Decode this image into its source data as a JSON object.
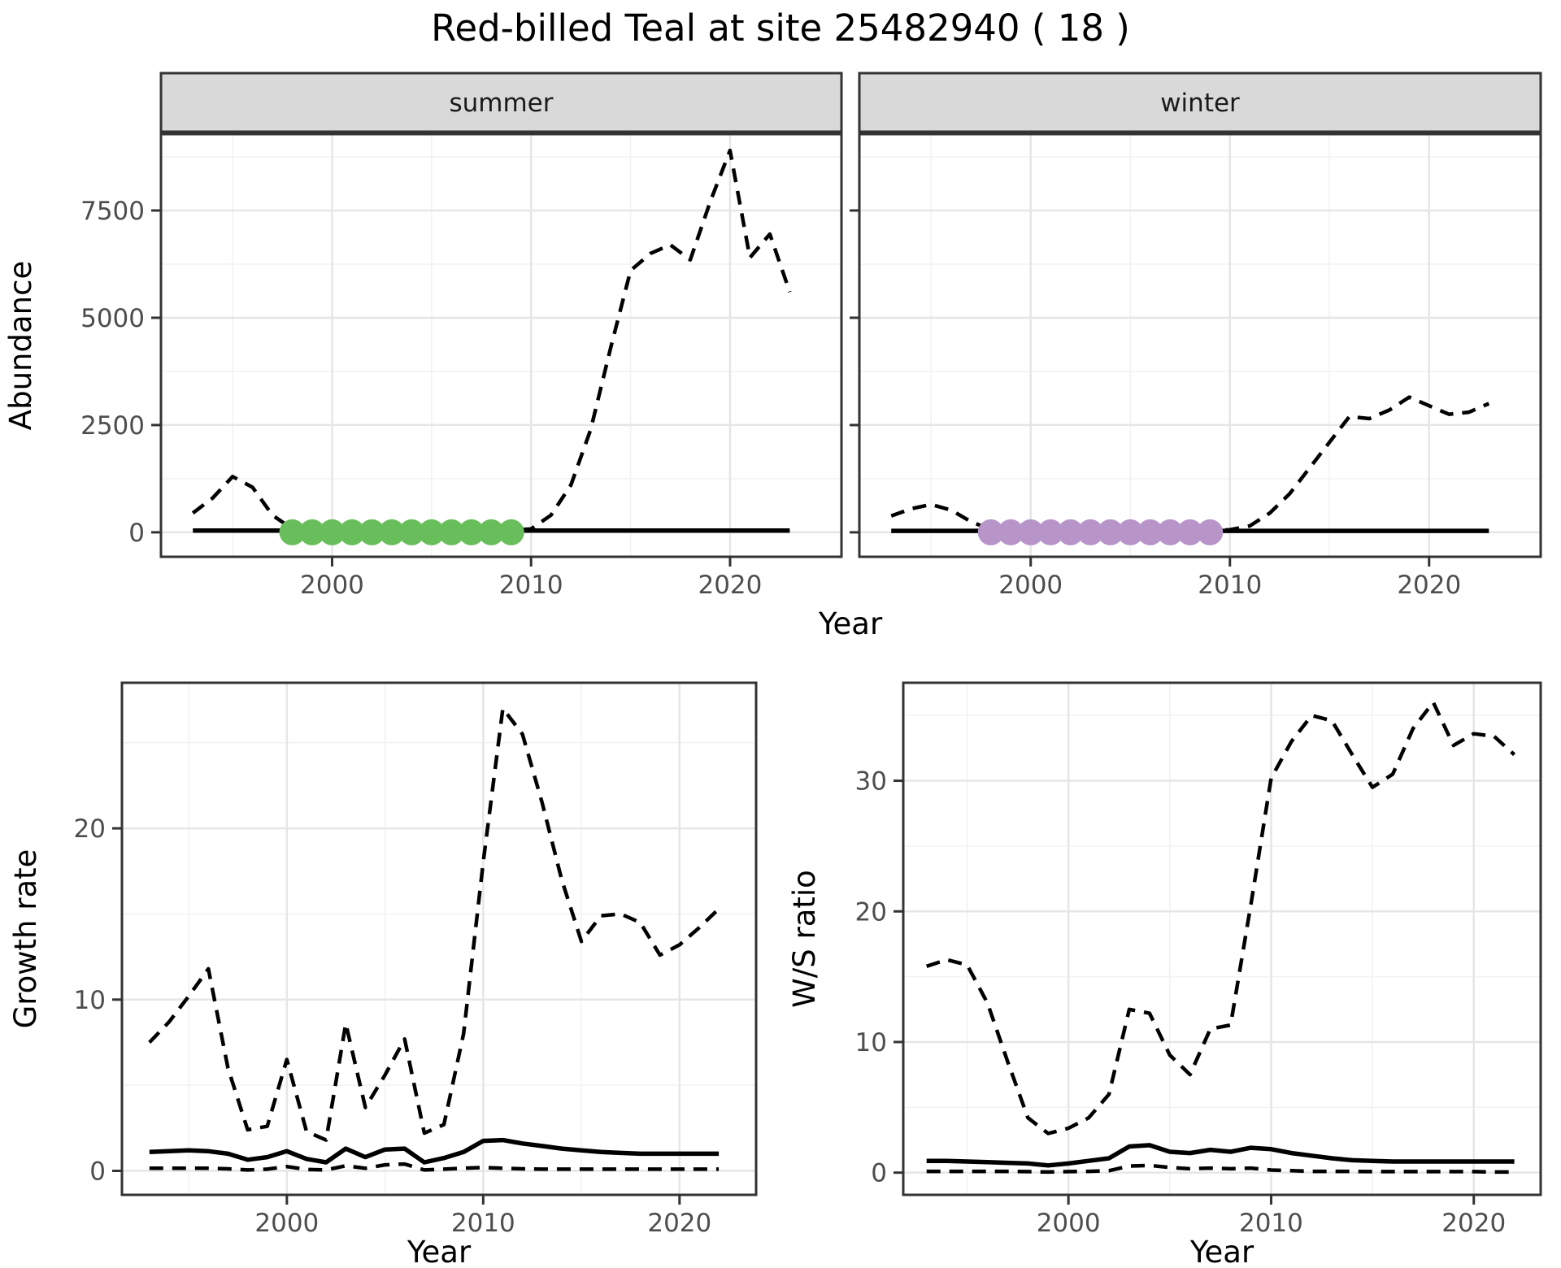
{
  "title": "Red-billed Teal at site 25482940 ( 18 )",
  "colors": {
    "imputed_summer": "#69BE5C",
    "imputed_winter": "#B795C9",
    "line": "#000000",
    "strip_bg": "#D9D9D9",
    "panel_border": "#333333",
    "tick_text": "#4D4D4D",
    "title_text": "#000000",
    "grid_major": "#E6E6E6",
    "grid_minor": "#F2F2F2"
  },
  "chart_data": [
    {
      "id": "summer",
      "type": "line",
      "facet_label": "summer",
      "xlabel": "Year",
      "ylabel": "Abundance",
      "xlim": [
        1991.4,
        2025.6
      ],
      "ylim": [
        -570,
        9280
      ],
      "xticks": [
        2000,
        2010,
        2020
      ],
      "yticks": [
        0,
        2500,
        5000,
        7500
      ],
      "xticks_minor": [
        1995,
        2005,
        2015
      ],
      "yticks_minor": [
        1250,
        3750,
        6250,
        8750
      ],
      "grid": true,
      "legend": "none",
      "x": [
        1993,
        1994,
        1995,
        1996,
        1997,
        1998,
        1999,
        2000,
        2001,
        2002,
        2003,
        2004,
        2005,
        2006,
        2007,
        2008,
        2009,
        2010,
        2011,
        2012,
        2013,
        2014,
        2015,
        2016,
        2017,
        2018,
        2019,
        2020,
        2021,
        2022,
        2023
      ],
      "series": [
        {
          "name": "observed-count",
          "linestyle": "dashed",
          "values": [
            450,
            800,
            1300,
            1050,
            400,
            80,
            40,
            30,
            30,
            30,
            40,
            30,
            30,
            40,
            30,
            40,
            50,
            80,
            400,
            1100,
            2400,
            4300,
            6100,
            6500,
            6700,
            6350,
            7700,
            8900,
            6400,
            6950,
            5600
          ]
        },
        {
          "name": "modelled-index",
          "linestyle": "solid",
          "values": [
            40,
            40,
            40,
            40,
            40,
            40,
            40,
            40,
            40,
            40,
            40,
            40,
            40,
            40,
            40,
            40,
            40,
            40,
            40,
            40,
            40,
            40,
            40,
            40,
            40,
            40,
            40,
            40,
            40,
            40,
            40
          ]
        }
      ],
      "imputed_points": {
        "color": "#69BE5C",
        "x": [
          1998,
          1999,
          2000,
          2001,
          2002,
          2003,
          2004,
          2005,
          2006,
          2007,
          2008,
          2009
        ],
        "y": [
          0,
          0,
          0,
          0,
          0,
          0,
          0,
          0,
          0,
          0,
          0,
          0
        ]
      }
    },
    {
      "id": "winter",
      "type": "line",
      "facet_label": "winter",
      "xlabel": "Year",
      "ylabel": "Abundance",
      "xlim": [
        1991.4,
        2025.6
      ],
      "ylim": [
        -570,
        9280
      ],
      "xticks": [
        2000,
        2010,
        2020
      ],
      "yticks": [
        0,
        2500,
        5000,
        7500
      ],
      "xticks_minor": [
        1995,
        2005,
        2015
      ],
      "yticks_minor": [
        1250,
        3750,
        6250,
        8750
      ],
      "grid": true,
      "legend": "none",
      "x": [
        1993,
        1994,
        1995,
        1996,
        1997,
        1998,
        1999,
        2000,
        2001,
        2002,
        2003,
        2004,
        2005,
        2006,
        2007,
        2008,
        2009,
        2010,
        2011,
        2012,
        2013,
        2014,
        2015,
        2016,
        2017,
        2018,
        2019,
        2020,
        2021,
        2022,
        2023
      ],
      "series": [
        {
          "name": "observed-count",
          "linestyle": "dashed",
          "values": [
            380,
            550,
            650,
            520,
            250,
            60,
            30,
            25,
            25,
            25,
            30,
            25,
            25,
            30,
            25,
            30,
            40,
            60,
            150,
            450,
            900,
            1500,
            2100,
            2700,
            2650,
            2850,
            3150,
            2950,
            2750,
            2800,
            3000
          ]
        },
        {
          "name": "modelled-index",
          "linestyle": "solid",
          "values": [
            35,
            35,
            35,
            35,
            35,
            35,
            35,
            35,
            35,
            35,
            35,
            35,
            35,
            35,
            35,
            35,
            35,
            35,
            35,
            35,
            35,
            35,
            35,
            35,
            35,
            35,
            35,
            35,
            35,
            35,
            35
          ]
        }
      ],
      "imputed_points": {
        "color": "#B795C9",
        "x": [
          1998,
          1999,
          2000,
          2001,
          2002,
          2003,
          2004,
          2005,
          2006,
          2007,
          2008,
          2009
        ],
        "y": [
          0,
          0,
          0,
          0,
          0,
          0,
          0,
          0,
          0,
          0,
          0,
          0
        ]
      }
    },
    {
      "id": "growth",
      "type": "line",
      "facet_label": null,
      "xlabel": "Year",
      "ylabel": "Growth rate",
      "xlim": [
        1991.6,
        2023.9
      ],
      "ylim": [
        -1.4,
        28.5
      ],
      "xticks": [
        2000,
        2010,
        2020
      ],
      "yticks": [
        0,
        10,
        20
      ],
      "xticks_minor": [
        1995,
        2005,
        2015
      ],
      "yticks_minor": [
        5,
        15,
        25
      ],
      "grid": true,
      "legend": "none",
      "x": [
        1993,
        1994,
        1995,
        1996,
        1997,
        1998,
        1999,
        2000,
        2001,
        2002,
        2003,
        2004,
        2005,
        2006,
        2007,
        2008,
        2009,
        2010,
        2011,
        2012,
        2013,
        2014,
        2015,
        2016,
        2017,
        2018,
        2019,
        2020,
        2021,
        2022
      ],
      "series": [
        {
          "name": "upper-ci",
          "linestyle": "dashed",
          "values": [
            7.5,
            8.7,
            10.2,
            11.8,
            6.0,
            2.4,
            2.6,
            6.5,
            2.3,
            1.8,
            8.6,
            3.7,
            5.6,
            7.7,
            2.2,
            2.7,
            8.0,
            18.0,
            27.0,
            25.5,
            21.5,
            17.0,
            13.4,
            14.9,
            15.0,
            14.5,
            12.6,
            13.2,
            14.2,
            15.3
          ]
        },
        {
          "name": "estimate",
          "linestyle": "solid",
          "values": [
            1.1,
            1.15,
            1.2,
            1.15,
            1.0,
            0.65,
            0.8,
            1.15,
            0.7,
            0.5,
            1.3,
            0.8,
            1.25,
            1.3,
            0.5,
            0.75,
            1.1,
            1.75,
            1.8,
            1.6,
            1.45,
            1.3,
            1.2,
            1.1,
            1.05,
            1.0,
            1.0,
            1.0,
            1.0,
            1.0
          ]
        },
        {
          "name": "lower-ci",
          "linestyle": "dashed",
          "values": [
            0.15,
            0.15,
            0.15,
            0.15,
            0.12,
            0.05,
            0.1,
            0.25,
            0.08,
            0.05,
            0.3,
            0.15,
            0.35,
            0.4,
            0.05,
            0.1,
            0.15,
            0.2,
            0.15,
            0.12,
            0.1,
            0.1,
            0.1,
            0.1,
            0.1,
            0.1,
            0.1,
            0.1,
            0.1,
            0.1
          ]
        }
      ],
      "imputed_points": null
    },
    {
      "id": "ws",
      "type": "line",
      "facet_label": null,
      "xlabel": "Year",
      "ylabel": "W/S ratio",
      "xlim": [
        1991.85,
        2023.3
      ],
      "ylim": [
        -1.7,
        37.5
      ],
      "xticks": [
        2000,
        2010,
        2020
      ],
      "yticks": [
        0,
        10,
        20,
        30
      ],
      "xticks_minor": [
        1995,
        2005,
        2015
      ],
      "yticks_minor": [
        5,
        15,
        25,
        35
      ],
      "grid": true,
      "legend": "none",
      "x": [
        1993,
        1994,
        1995,
        1996,
        1997,
        1998,
        1999,
        2000,
        2001,
        2002,
        2003,
        2004,
        2005,
        2006,
        2007,
        2008,
        2009,
        2010,
        2011,
        2012,
        2013,
        2014,
        2015,
        2016,
        2017,
        2018,
        2019,
        2020,
        2021,
        2022
      ],
      "series": [
        {
          "name": "upper-ci",
          "linestyle": "dashed",
          "values": [
            15.8,
            16.3,
            15.9,
            13.0,
            8.5,
            4.2,
            3.0,
            3.4,
            4.2,
            6.0,
            12.5,
            12.2,
            9.0,
            7.5,
            11.0,
            11.3,
            20.5,
            30.2,
            33.0,
            35.0,
            34.6,
            32.0,
            29.5,
            30.5,
            34.0,
            36.0,
            32.7,
            33.6,
            33.4,
            32.0
          ]
        },
        {
          "name": "estimate",
          "linestyle": "solid",
          "values": [
            0.9,
            0.9,
            0.85,
            0.8,
            0.75,
            0.7,
            0.55,
            0.7,
            0.9,
            1.1,
            2.0,
            2.1,
            1.6,
            1.5,
            1.75,
            1.6,
            1.9,
            1.8,
            1.5,
            1.3,
            1.1,
            0.95,
            0.9,
            0.85,
            0.85,
            0.85,
            0.85,
            0.85,
            0.85,
            0.85
          ]
        },
        {
          "name": "lower-ci",
          "linestyle": "dashed",
          "values": [
            0.1,
            0.1,
            0.1,
            0.1,
            0.1,
            0.08,
            0.05,
            0.08,
            0.1,
            0.15,
            0.5,
            0.55,
            0.4,
            0.3,
            0.35,
            0.3,
            0.35,
            0.2,
            0.15,
            0.1,
            0.1,
            0.1,
            0.08,
            0.08,
            0.08,
            0.08,
            0.08,
            0.08,
            0.05,
            0.05
          ]
        }
      ],
      "imputed_points": null
    }
  ]
}
